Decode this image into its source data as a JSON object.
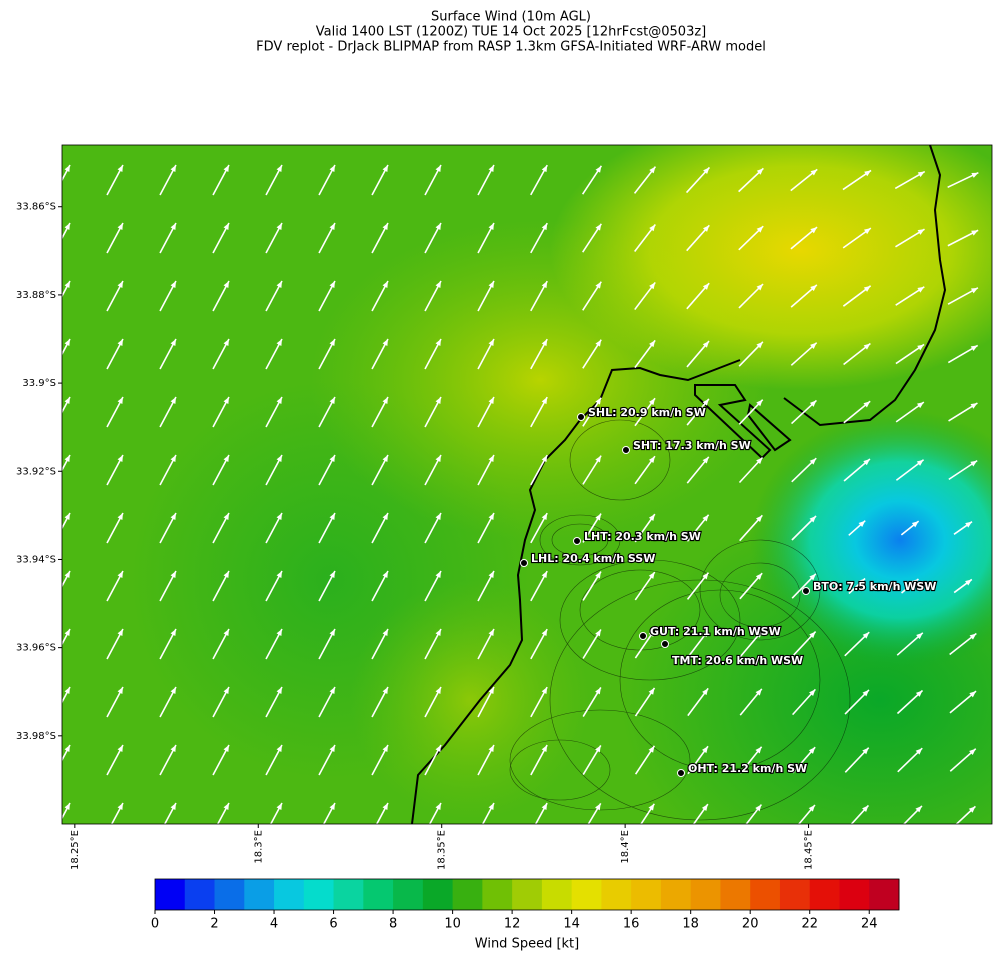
{
  "map": {
    "title": [
      "Surface Wind (10m AGL)",
      "Valid 1400 LST (1200Z) TUE 14 Oct 2025 [12hrFcst@0503z]",
      "FDV replot - DrJack BLIPMAP from RASP 1.3km GFSA-Initiated WRF-ARW model"
    ],
    "ylim": [
      -34.0,
      -33.846
    ],
    "yticks": [
      {
        "value": -33.86,
        "label": "33.86°S"
      },
      {
        "value": -33.88,
        "label": "33.88°S"
      },
      {
        "value": -33.9,
        "label": "33.9°S"
      },
      {
        "value": -33.92,
        "label": "33.92°S"
      },
      {
        "value": -33.94,
        "label": "33.94°S"
      },
      {
        "value": -33.96,
        "label": "33.96°S"
      },
      {
        "value": -33.98,
        "label": "33.98°S"
      }
    ],
    "xlim": [
      18.2465,
      18.5
    ],
    "xticks": [
      {
        "value": 18.25,
        "label": "18.25°E"
      },
      {
        "value": 18.3,
        "label": "18.3°E"
      },
      {
        "value": 18.35,
        "label": "18.35°E"
      },
      {
        "value": 18.4,
        "label": "18.4°E"
      },
      {
        "value": 18.45,
        "label": "18.45°E"
      }
    ],
    "stations": [
      "SHL: 20.9 km/h SW",
      "SHT: 17.3 km/h SW",
      "LHT: 20.3 km/h SW",
      "LHL: 20.4 km/h SSW",
      "BTO: 7.5 km/h WSW",
      "GUT: 21.1 km/h WSW",
      "TMT: 20.6 km/h WSW",
      "OHT: 21.2 km/h SW"
    ],
    "colorbar": {
      "label": "Wind Speed [kt]",
      "lim": [
        0,
        25
      ],
      "ticks": [
        0,
        2,
        4,
        6,
        8,
        10,
        12,
        14,
        16,
        18,
        20,
        22,
        24
      ],
      "colors": [
        "#0000f5",
        "#0a3ff0",
        "#0a6ee8",
        "#0a9ee6",
        "#08c8e0",
        "#05dccc",
        "#0ad4a0",
        "#05c870",
        "#08b84a",
        "#0aa828",
        "#38b010",
        "#70c005",
        "#a0cc05",
        "#c8dc00",
        "#e4e000",
        "#e8cc00",
        "#ecbc00",
        "#eca800",
        "#ec9400",
        "#ec7800",
        "#ec5000",
        "#e83008",
        "#e41008",
        "#dc0010",
        "#c00020"
      ]
    }
  }
}
